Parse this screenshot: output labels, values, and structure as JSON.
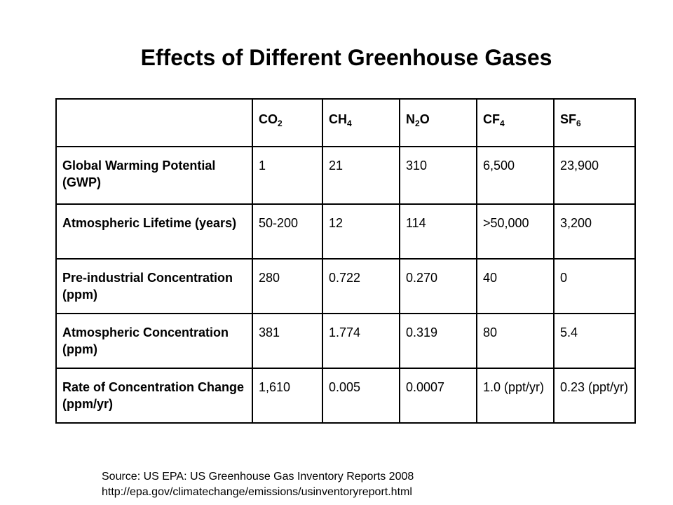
{
  "title": "Effects of Different Greenhouse Gases",
  "table": {
    "columns": [
      {
        "name": "CO",
        "subscript": "2",
        "suffix": ""
      },
      {
        "name": "CH",
        "subscript": "4",
        "suffix": ""
      },
      {
        "name": "N",
        "subscript": "2",
        "suffix": "O"
      },
      {
        "name": "CF",
        "subscript": "4",
        "suffix": ""
      },
      {
        "name": "SF",
        "subscript": "6",
        "suffix": ""
      }
    ],
    "rows": [
      {
        "label": "Global Warming Potential (GWP)",
        "values": [
          "1",
          "21",
          "310",
          "6,500",
          "23,900"
        ]
      },
      {
        "label": "Atmospheric Lifetime (years)",
        "values": [
          "50-200",
          "12",
          "114",
          ">50,000",
          "3,200"
        ]
      },
      {
        "label": "Pre-industrial Concentration (ppm)",
        "values": [
          "280",
          "0.722",
          "0.270",
          "40",
          "0"
        ]
      },
      {
        "label": "Atmospheric Concentration (ppm)",
        "values": [
          "381",
          "1.774",
          "0.319",
          "80",
          "5.4"
        ]
      },
      {
        "label": "Rate of Concentration Change (ppm/yr)",
        "values": [
          "1,610",
          "0.005",
          "0.0007",
          "1.0 (ppt/yr)",
          "0.23 (ppt/yr)"
        ]
      }
    ]
  },
  "source": {
    "line1": "Source:  US EPA: US Greenhouse Gas Inventory Reports 2008",
    "line2": "http://epa.gov/climatechange/emissions/usinventoryreport.html"
  }
}
